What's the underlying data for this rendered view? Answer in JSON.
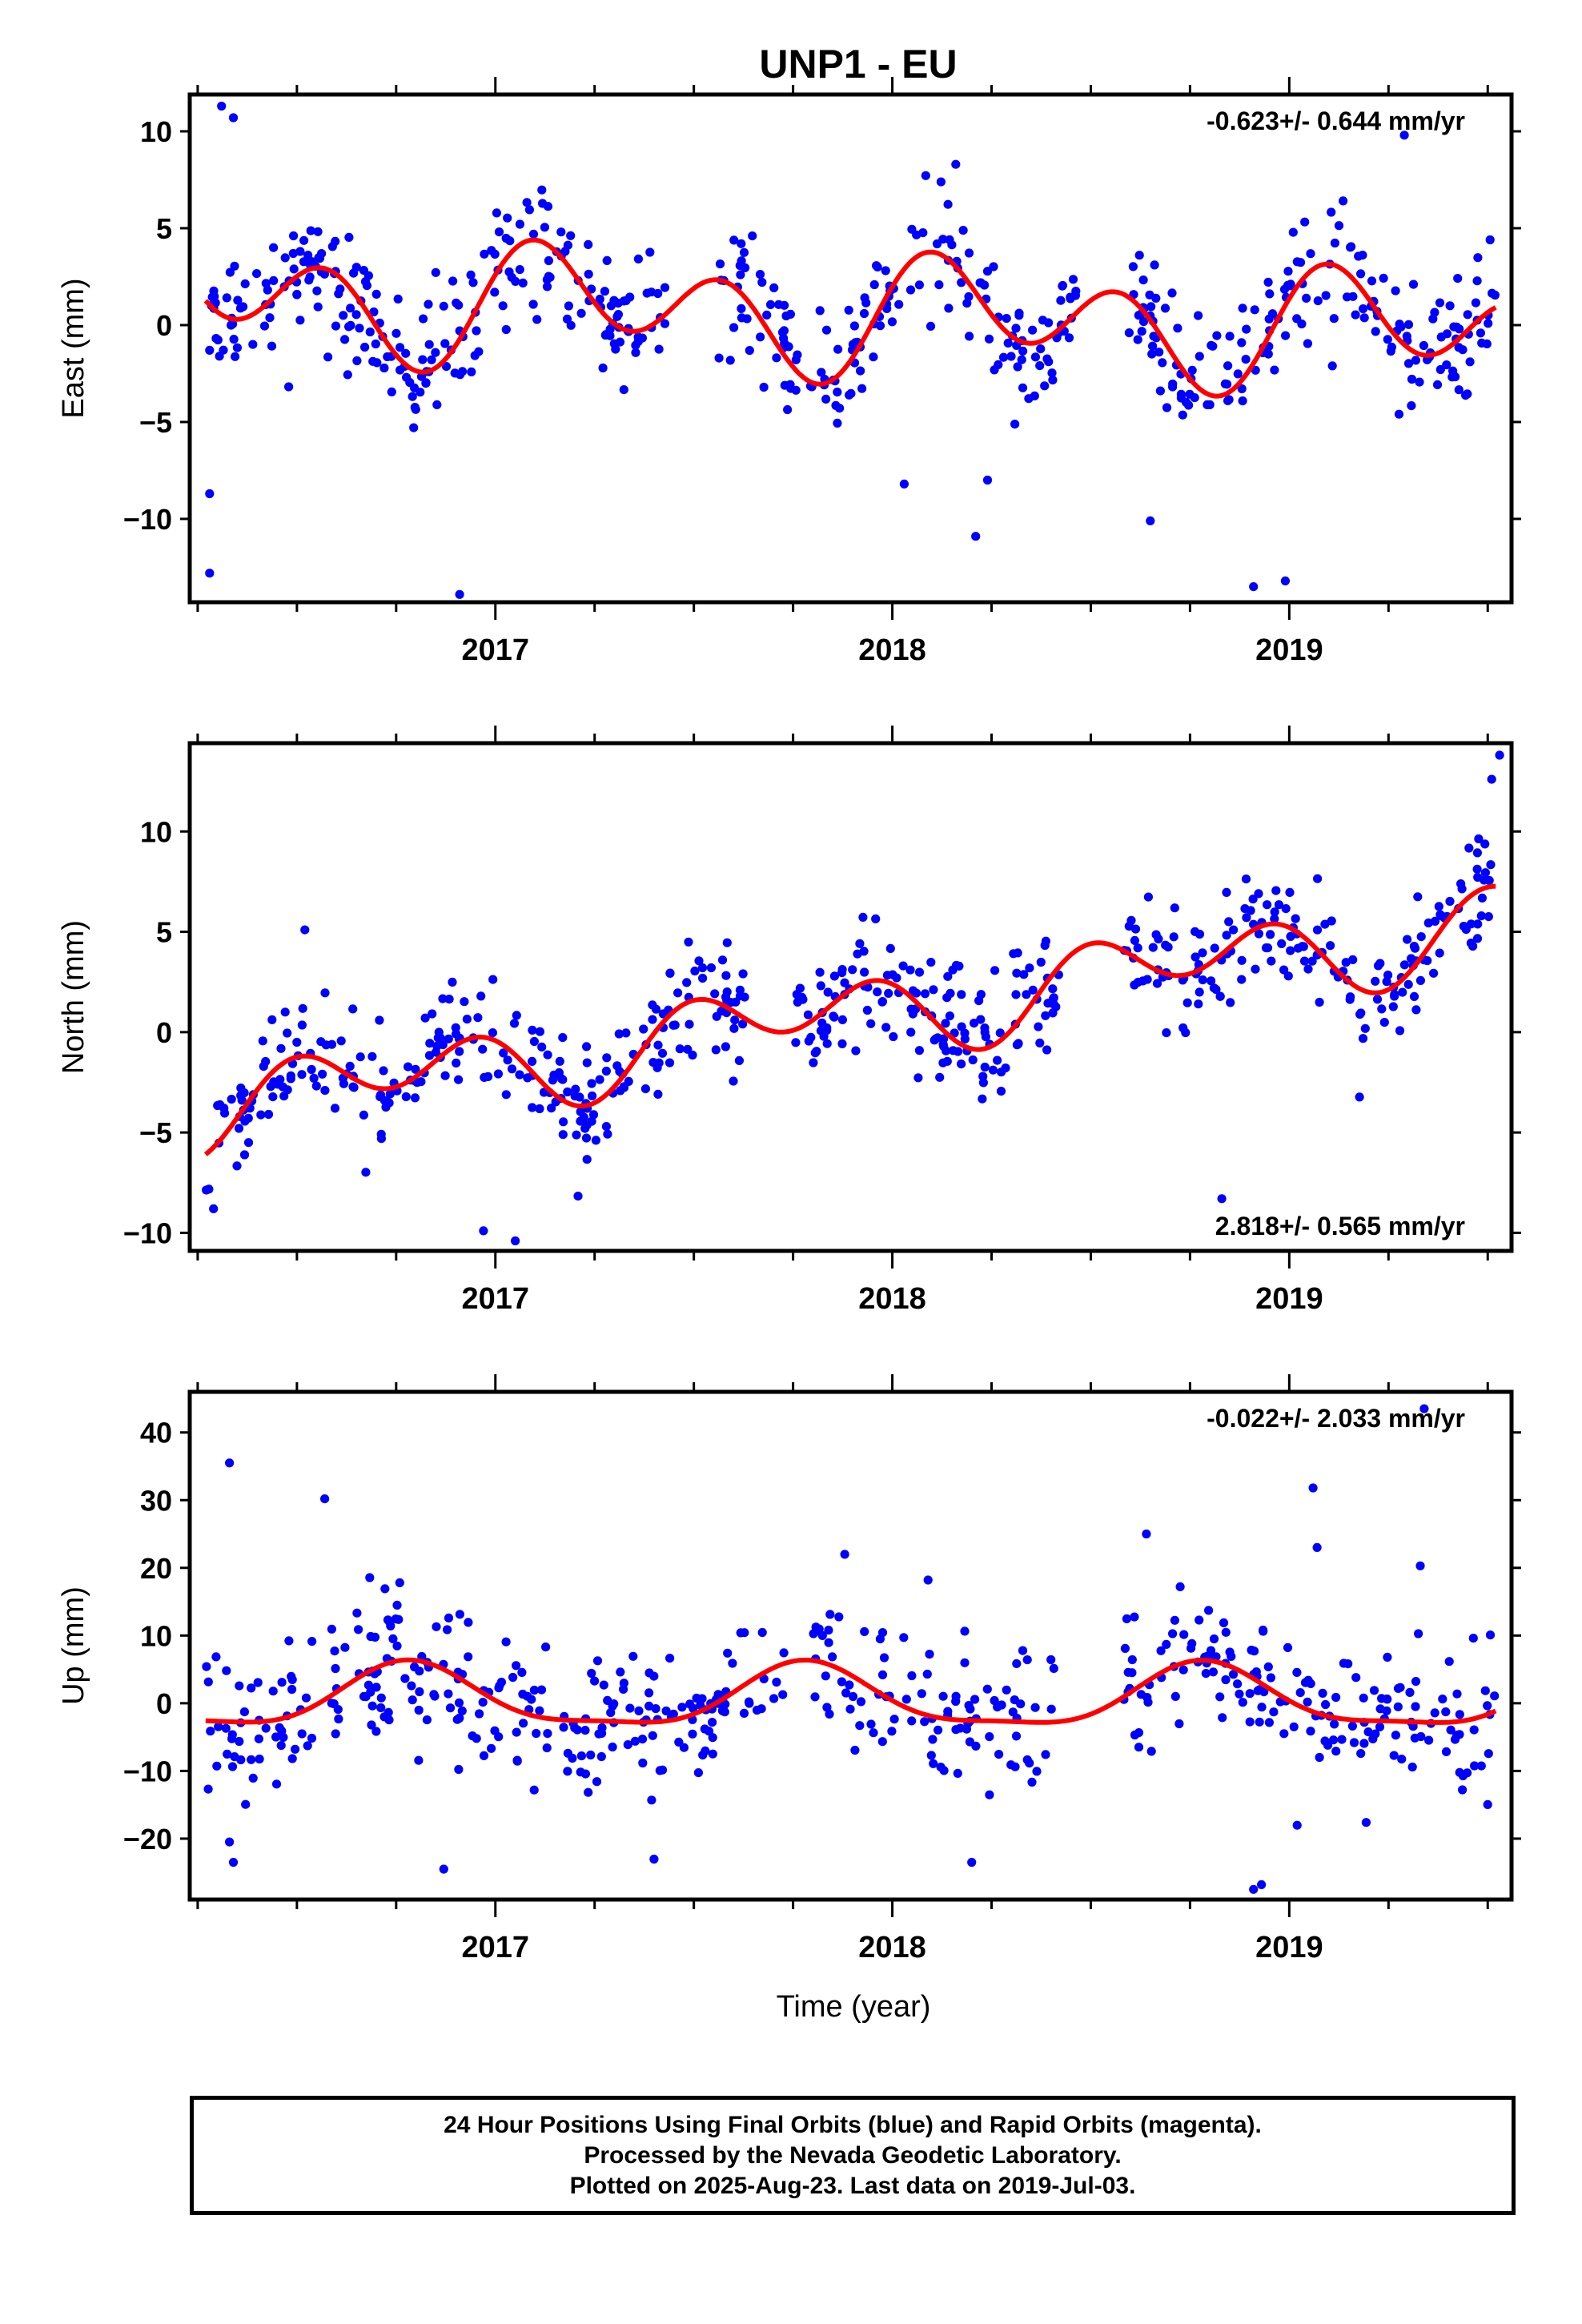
{
  "title": "UNP1 - EU",
  "xlabel": "Time (year)",
  "footer": {
    "line1": "24 Hour Positions Using Final Orbits (blue) and Rapid Orbits (magenta).",
    "line2": "Processed by the Nevada Geodetic Laboratory.",
    "line3": "Plotted on 2025-Aug-23. Last data on 2019-Jul-03."
  },
  "colors": {
    "data_points": "#0000ff",
    "trend_curve": "#ff0000",
    "axes": "#000000"
  },
  "chart_data": [
    {
      "type": "scatter",
      "component": "east",
      "ylabel": "East (mm)",
      "rate_label": "-0.623+/- 0.644 mm/yr",
      "rate_position": "top-right",
      "xlim": [
        2016.23,
        2019.56
      ],
      "ylim": [
        -14.3,
        11.9
      ],
      "yticks": [
        10,
        5,
        0,
        -5,
        -10
      ],
      "ytick_labels": [
        "10",
        "5",
        "0",
        "−5",
        "−10"
      ],
      "xticks": [
        2017,
        2018,
        2019
      ],
      "xtick_labels": [
        "2017",
        "2018",
        "2019"
      ],
      "grid": false,
      "point_color": "#0000ff",
      "curve_color": "#ff0000",
      "fit": {
        "offset": 0.55,
        "rate": -0.62,
        "a1": 1.5,
        "b1": 0.2,
        "a2": 2.0,
        "b2": 1.3
      },
      "noise_sd": 1.7,
      "point_count": 620,
      "outliers": [
        [
          2016.28,
          -12.8
        ],
        [
          2016.28,
          -8.7
        ],
        [
          2016.31,
          11.3
        ],
        [
          2016.34,
          10.7
        ],
        [
          2016.91,
          -13.9
        ],
        [
          2018.21,
          -10.9
        ],
        [
          2018.65,
          -10.1
        ],
        [
          2018.91,
          -13.5
        ],
        [
          2018.99,
          -13.2
        ],
        [
          2019.29,
          9.8
        ],
        [
          2018.03,
          -8.2
        ],
        [
          2018.24,
          -8.0
        ]
      ],
      "gaps": [
        [
          2017.43,
          2017.56
        ],
        [
          2018.47,
          2018.58
        ]
      ]
    },
    {
      "type": "scatter",
      "component": "north",
      "ylabel": "North (mm)",
      "rate_label": "2.818+/- 0.565 mm/yr",
      "rate_position": "bottom-right",
      "xlim": [
        2016.23,
        2019.56
      ],
      "ylim": [
        -10.9,
        14.4
      ],
      "yticks": [
        10,
        5,
        0,
        -5,
        -10
      ],
      "ytick_labels": [
        "10",
        "5",
        "0",
        "−5",
        "−10"
      ],
      "xticks": [
        2017,
        2018,
        2019
      ],
      "xtick_labels": [
        "2017",
        "2018",
        "2019"
      ],
      "grid": false,
      "point_color": "#0000ff",
      "curve_color": "#ff0000",
      "fit": {
        "offset": 0.9,
        "rate": 2.82,
        "a1": -1.1,
        "b1": -0.3,
        "a2": -0.4,
        "b2": 1.5
      },
      "noise_sd": 1.5,
      "point_count": 640,
      "outliers": [
        [
          2016.29,
          -8.8
        ],
        [
          2016.97,
          -9.9
        ],
        [
          2017.05,
          -10.4
        ],
        [
          2018.83,
          -8.3
        ],
        [
          2019.53,
          13.8
        ],
        [
          2019.51,
          12.6
        ],
        [
          2016.52,
          5.1
        ]
      ],
      "gaps": [
        [
          2017.63,
          2017.74
        ],
        [
          2018.42,
          2018.58
        ]
      ]
    },
    {
      "type": "scatter",
      "component": "up",
      "ylabel": "Up (mm)",
      "rate_label": "-0.022+/- 2.033 mm/yr",
      "rate_position": "top-right",
      "xlim": [
        2016.23,
        2019.56
      ],
      "ylim": [
        -29.0,
        46.0
      ],
      "yticks": [
        40,
        30,
        20,
        10,
        0,
        -10,
        -20
      ],
      "ytick_labels": [
        "40",
        "30",
        "20",
        "10",
        "0",
        "−10",
        "−20"
      ],
      "xticks": [
        2017,
        2018,
        2019
      ],
      "xtick_labels": [
        "2017",
        "2018",
        "2019"
      ],
      "grid": false,
      "point_color": "#0000ff",
      "curve_color": "#ff0000",
      "fit": {
        "offset": 0.6,
        "rate": -0.02,
        "a1": -4.4,
        "b1": 1.0,
        "a2": -0.4,
        "b2": -1.2
      },
      "noise_sd": 5.6,
      "point_count": 560,
      "outliers": [
        [
          2016.33,
          35.5
        ],
        [
          2016.33,
          -20.5
        ],
        [
          2016.34,
          -23.5
        ],
        [
          2016.57,
          30.2
        ],
        [
          2016.87,
          -24.5
        ],
        [
          2017.88,
          22.0
        ],
        [
          2018.09,
          18.2
        ],
        [
          2018.2,
          -23.5
        ],
        [
          2018.64,
          25.0
        ],
        [
          2018.91,
          -27.5
        ],
        [
          2018.93,
          -26.8
        ],
        [
          2019.06,
          31.8
        ],
        [
          2019.07,
          23.0
        ],
        [
          2019.34,
          43.5
        ],
        [
          2019.33,
          20.3
        ]
      ],
      "gaps": [
        [
          2017.73,
          2017.8
        ],
        [
          2018.42,
          2018.58
        ]
      ]
    }
  ]
}
